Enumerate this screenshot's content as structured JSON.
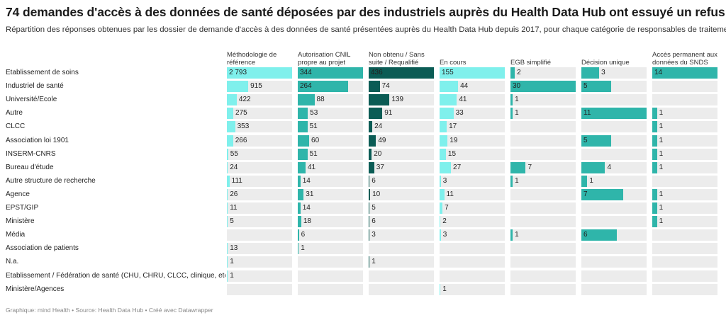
{
  "header": {
    "title": "74 demandes d'accès à des données de santé déposées par des industriels auprès du Health Data Hub ont essuyé un refus",
    "subtitle": "Répartition des réponses obtenues par les dossier de demande d'accès à des données de santé présentées auprès du Health Data Hub depuis 2017, pour chaque catégorie de responsables de traitement."
  },
  "footer": "Graphique: mind Health • Source: Health Data Hub • Créé avec Datawrapper",
  "chart_data": {
    "type": "table",
    "title": "74 demandes d'accès à des données de santé déposées par des industriels auprès du Health Data Hub ont essuyé un refus",
    "columns": [
      {
        "name": "Méthodologie de référence",
        "color": "#7ff0ec",
        "text_color": "#222222"
      },
      {
        "name": "Autorisation CNIL propre au projet",
        "color": "#2fb5aa",
        "text_color": "#222222"
      },
      {
        "name": "Non obtenu / Sans suite / Requalifié",
        "color": "#0b5c55",
        "text_color": "#222222"
      },
      {
        "name": "En cours",
        "color": "#7ff0ec",
        "text_color": "#222222"
      },
      {
        "name": "EGB simplifié",
        "color": "#2fb5aa",
        "text_color": "#222222"
      },
      {
        "name": "Décision unique",
        "color": "#2fb5aa",
        "text_color": "#222222"
      },
      {
        "name": "Accès permanent aux données du SNDS",
        "color": "#2fb5aa",
        "text_color": "#222222"
      }
    ],
    "rows": [
      {
        "label": "Etablissement de soins",
        "values": [
          2793,
          344,
          436,
          155,
          2,
          3,
          14
        ]
      },
      {
        "label": "Industriel de santé",
        "values": [
          915,
          264,
          74,
          44,
          30,
          5,
          null
        ]
      },
      {
        "label": "Université/Ecole",
        "values": [
          422,
          88,
          139,
          41,
          1,
          null,
          null
        ]
      },
      {
        "label": "Autre",
        "values": [
          275,
          53,
          91,
          33,
          1,
          11,
          1
        ]
      },
      {
        "label": "CLCC",
        "values": [
          353,
          51,
          24,
          17,
          null,
          null,
          1
        ]
      },
      {
        "label": "Association loi 1901",
        "values": [
          266,
          60,
          49,
          19,
          null,
          5,
          1
        ]
      },
      {
        "label": "INSERM-CNRS",
        "values": [
          55,
          51,
          20,
          15,
          null,
          null,
          1
        ]
      },
      {
        "label": "Bureau d'étude",
        "values": [
          24,
          41,
          37,
          27,
          7,
          4,
          1
        ]
      },
      {
        "label": "Autre structure de recherche",
        "values": [
          111,
          14,
          6,
          3,
          1,
          1,
          null
        ]
      },
      {
        "label": "Agence",
        "values": [
          26,
          31,
          10,
          11,
          null,
          7,
          1
        ]
      },
      {
        "label": "EPST/GIP",
        "values": [
          11,
          14,
          5,
          7,
          null,
          null,
          1
        ]
      },
      {
        "label": "Ministère",
        "values": [
          5,
          18,
          6,
          2,
          null,
          null,
          1
        ]
      },
      {
        "label": "Média",
        "values": [
          null,
          6,
          3,
          3,
          1,
          6,
          null
        ]
      },
      {
        "label": "Association de patients",
        "values": [
          13,
          1,
          null,
          null,
          null,
          null,
          null
        ]
      },
      {
        "label": "N.a.",
        "values": [
          1,
          null,
          1,
          null,
          null,
          null,
          null
        ]
      },
      {
        "label": "Etablissement / Fédération de santé (CHU, CHRU, CLCC, clinique, etc.. )",
        "values": [
          1,
          null,
          null,
          null,
          null,
          null,
          null
        ]
      },
      {
        "label": "Ministère/Agences",
        "values": [
          null,
          null,
          null,
          1,
          null,
          null,
          null
        ]
      }
    ]
  }
}
